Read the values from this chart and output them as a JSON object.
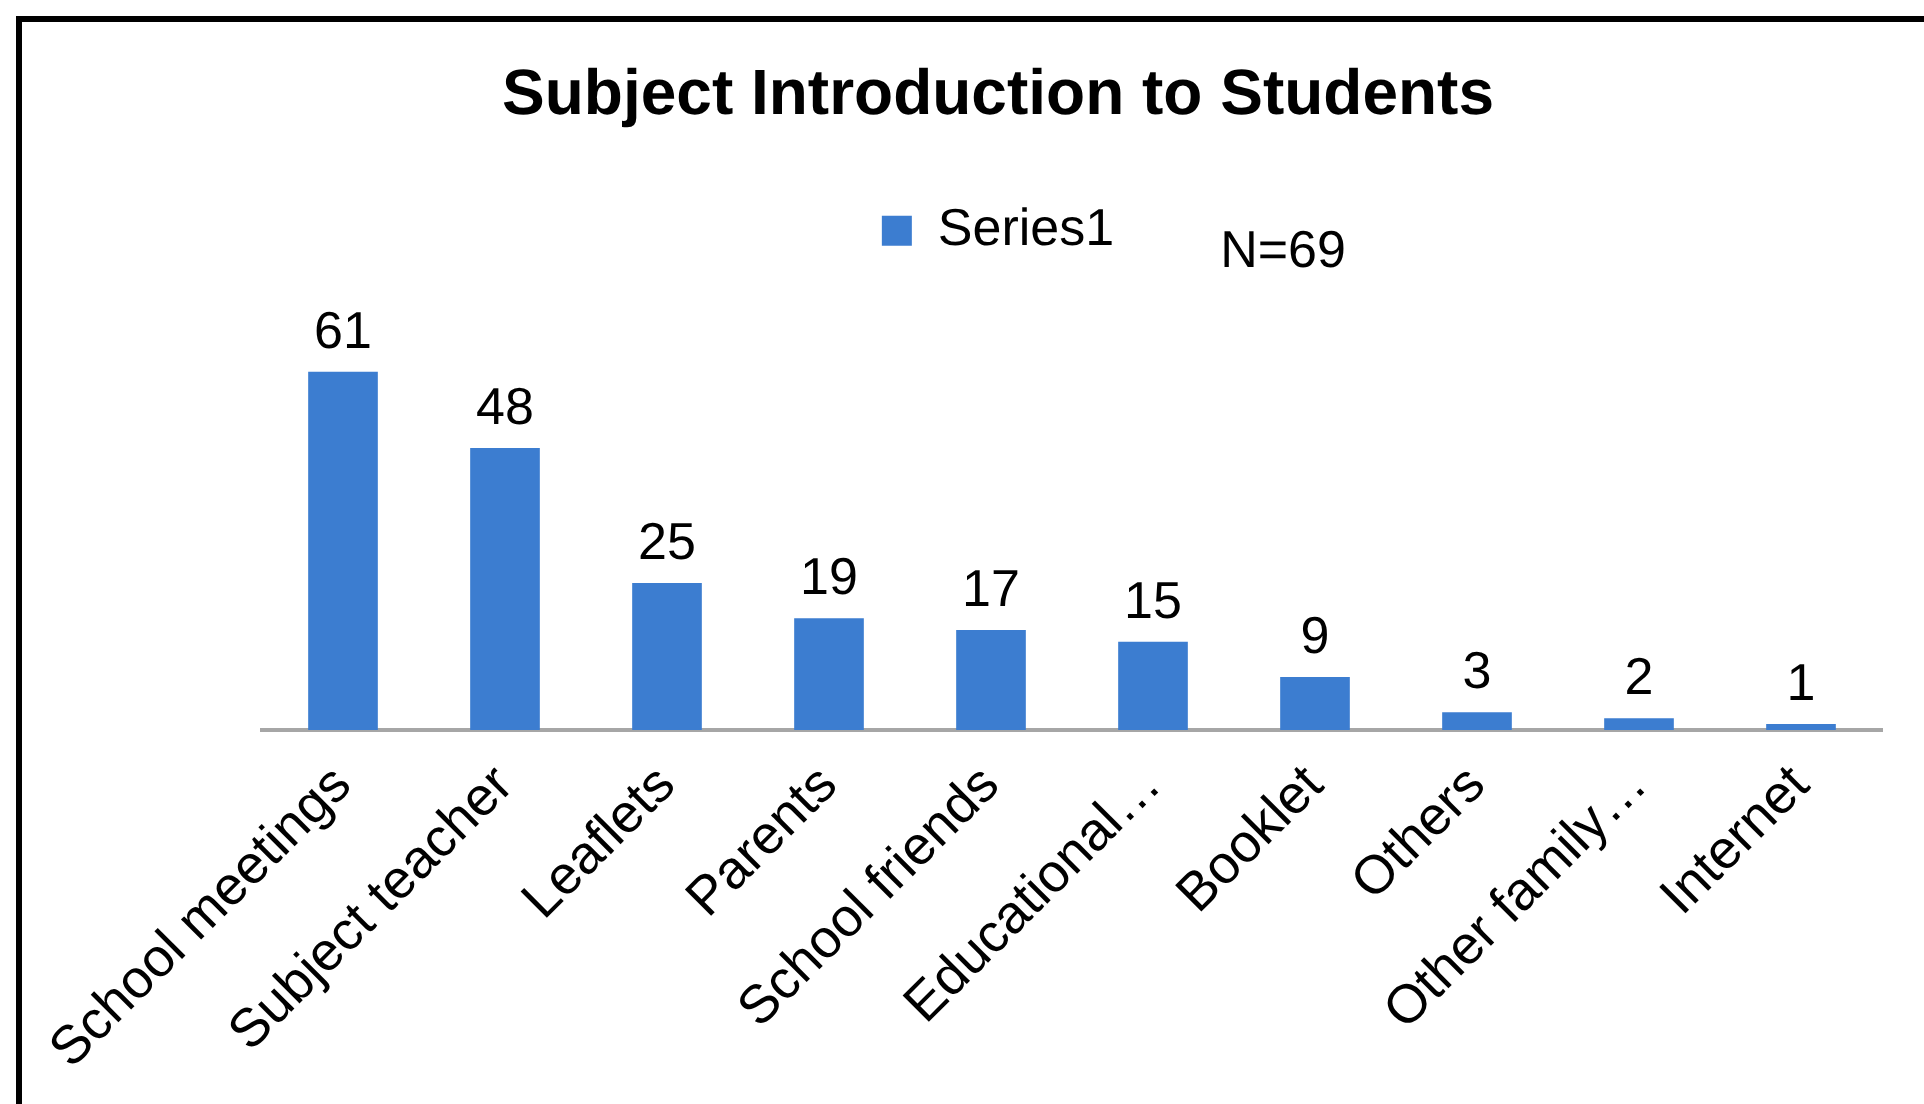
{
  "chart_data": {
    "type": "bar",
    "title": "Subject Introduction to Students",
    "categories": [
      "School meetings",
      "Subject teacher",
      "Leaflets",
      "Parents",
      "School friends",
      "Educational…",
      "Booklet",
      "Others",
      "Other family…",
      "Internet"
    ],
    "series": [
      {
        "name": "Series1",
        "color": "#3c7dd0",
        "values": [
          61,
          48,
          25,
          19,
          17,
          15,
          9,
          3,
          2,
          1
        ]
      }
    ],
    "legend": "top",
    "data_labels": true,
    "annotations": [
      "N=69"
    ]
  }
}
